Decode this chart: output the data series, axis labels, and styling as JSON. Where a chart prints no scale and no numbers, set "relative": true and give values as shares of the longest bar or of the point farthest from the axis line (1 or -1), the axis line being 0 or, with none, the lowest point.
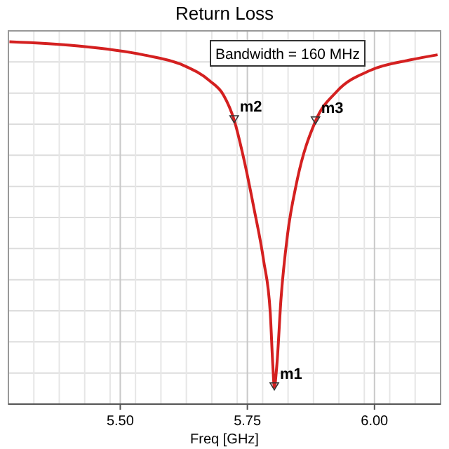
{
  "chart_data": {
    "type": "line",
    "title": "Return Loss",
    "xlabel": "Freq [GHz]",
    "relative": true,
    "xlim": [
      5.28,
      6.13
    ],
    "xticks": [
      {
        "value": 5.5,
        "label": "5.50"
      },
      {
        "value": 5.75,
        "label": "5.75"
      },
      {
        "value": 6.0,
        "label": "6.00"
      }
    ],
    "grid": true,
    "line_style": "solid",
    "series": [
      {
        "color": "#d42020",
        "x": [
          5.282,
          5.413,
          5.545,
          5.624,
          5.676,
          5.703,
          5.724,
          5.742,
          5.763,
          5.782,
          5.795,
          5.8,
          5.803,
          5.808,
          5.816,
          5.829,
          5.847,
          5.884,
          5.926,
          5.992,
          6.071,
          6.124
        ],
        "values": [
          1.0,
          0.989,
          0.964,
          0.935,
          0.892,
          0.853,
          0.784,
          0.683,
          0.54,
          0.396,
          0.252,
          0.108,
          0.047,
          0.108,
          0.288,
          0.468,
          0.612,
          0.781,
          0.863,
          0.921,
          0.95,
          0.964
        ]
      }
    ],
    "annotations": [
      "Bandwidth = 160 MHz",
      {
        "text": "m1",
        "x": 5.803,
        "y": 0.047
      },
      {
        "text": "m2",
        "x": 5.724,
        "y": 0.784
      },
      {
        "text": "m3",
        "x": 5.884,
        "y": 0.781
      }
    ]
  }
}
